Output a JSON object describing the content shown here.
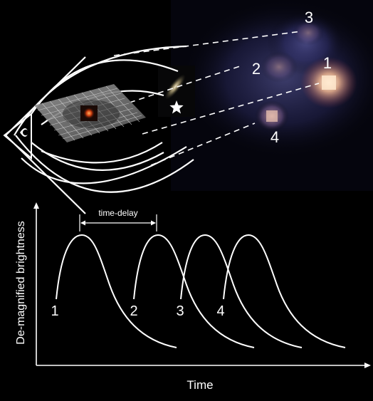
{
  "lensing": {
    "image_labels": [
      "1",
      "2",
      "3",
      "4"
    ]
  },
  "curve_chart": {
    "ylabel": "De-magnified brightness",
    "xlabel": "Time",
    "annotation": "time-delay",
    "curve_labels": [
      "1",
      "2",
      "3",
      "4"
    ]
  },
  "colors": {
    "background": "#000000",
    "line": "#ffffff",
    "quasar_core": "#fff4e0",
    "quasar_glow": "#e08a6a",
    "diffuse_glow": "#5a5ab0"
  }
}
